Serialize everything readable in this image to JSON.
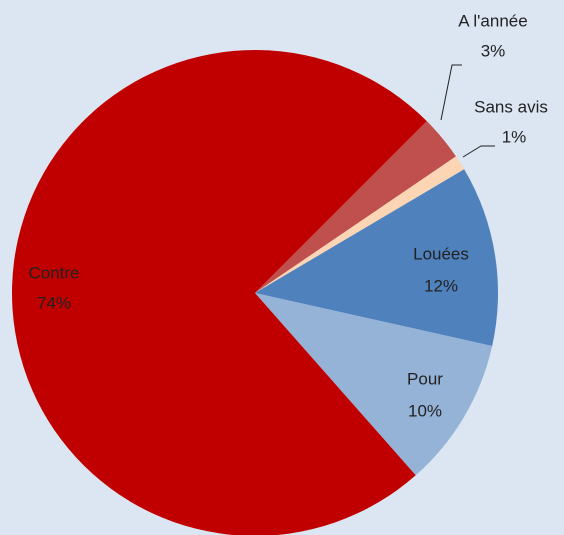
{
  "chart_data": {
    "type": "pie",
    "start_angle": -45,
    "categories": [
      "A l'année",
      "Sans avis",
      "Louées",
      "Pour",
      "Contre"
    ],
    "values": [
      3,
      1,
      12,
      10,
      74
    ],
    "value_labels": [
      "3%",
      "1%",
      "12%",
      "10%",
      "74%"
    ],
    "colors": [
      "#c0504d",
      "#fcd5b5",
      "#4f81bd",
      "#95b3d7",
      "#c00000"
    ]
  }
}
